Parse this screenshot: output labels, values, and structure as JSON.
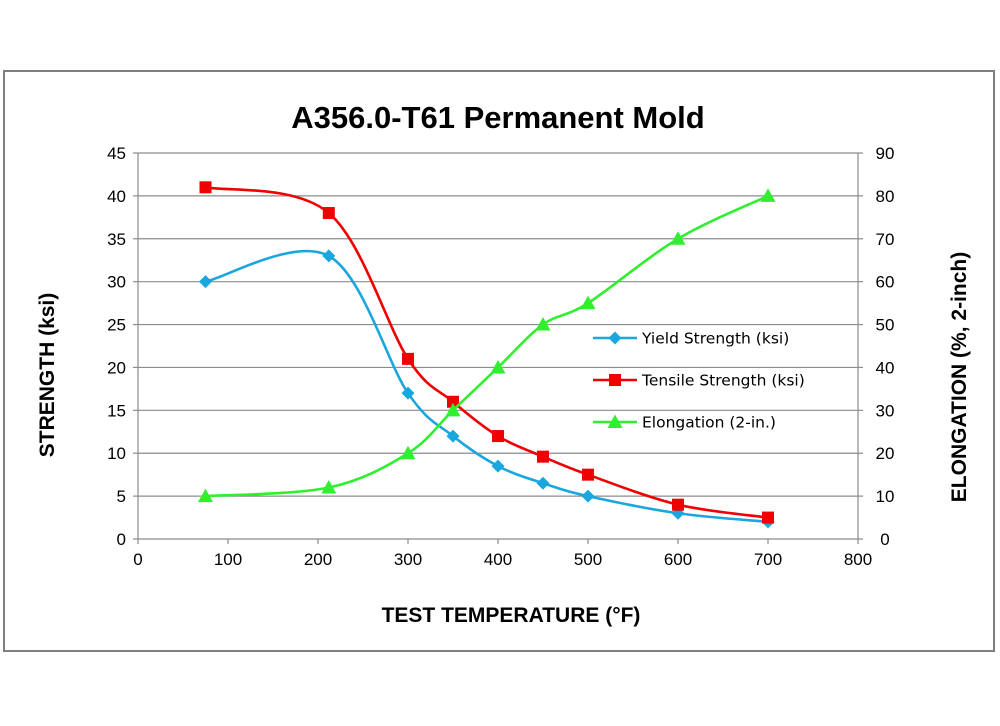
{
  "chart_data": {
    "type": "line",
    "title": "A356.0-T61 Permanent Mold",
    "xlabel": "TEST TEMPERATURE (°F)",
    "ylabel": "STRENGTH (ksi)",
    "y2label": "ELONGATION (%, 2-inch)",
    "xlim": [
      0,
      800
    ],
    "ylim": [
      0,
      45
    ],
    "y2lim": [
      0,
      90
    ],
    "x_ticks": [
      "0",
      "100",
      "200",
      "300",
      "400",
      "500",
      "600",
      "700",
      "800"
    ],
    "y_ticks": [
      "0",
      "5",
      "10",
      "15",
      "20",
      "25",
      "30",
      "35",
      "40",
      "45"
    ],
    "y2_ticks": [
      "0",
      "10",
      "20",
      "30",
      "40",
      "50",
      "60",
      "70",
      "80",
      "90"
    ],
    "grid": true,
    "legend_position": "right",
    "series": [
      {
        "name": "Yield Strength (ksi)",
        "axis": "left",
        "marker": "diamond",
        "color": "#1aa6de",
        "x": [
          75,
          212,
          300,
          350,
          400,
          450,
          500,
          600,
          700
        ],
        "y": [
          30,
          33,
          17,
          12,
          8.5,
          6.5,
          5,
          3,
          2
        ]
      },
      {
        "name": "Tensile Strength (ksi)",
        "axis": "left",
        "marker": "square",
        "color": "#f00000",
        "x": [
          75,
          212,
          300,
          350,
          400,
          450,
          500,
          600,
          700
        ],
        "y": [
          41,
          38,
          21,
          16,
          12,
          9.6,
          7.5,
          4,
          2.5
        ]
      },
      {
        "name": "Elongation (2-in.)",
        "axis": "right",
        "marker": "triangle",
        "color": "#2ef02e",
        "x": [
          75,
          212,
          300,
          350,
          400,
          450,
          500,
          600,
          700
        ],
        "y": [
          10,
          12,
          20,
          30,
          40,
          50,
          55,
          70,
          80
        ]
      }
    ]
  }
}
